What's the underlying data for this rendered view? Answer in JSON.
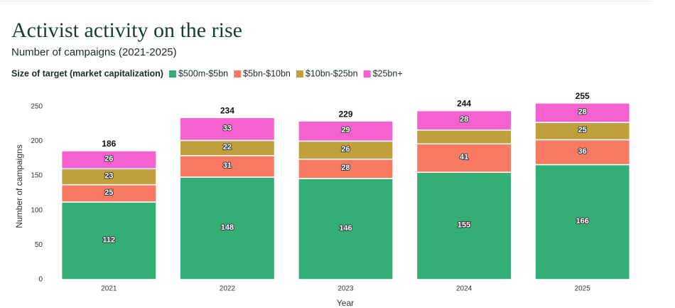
{
  "chart_data": {
    "type": "stacked_bar",
    "title": "Activist activity on the rise",
    "subtitle": "Number of campaigns (2021-2025)",
    "legend_title": "Size of target (market capitalization)",
    "x_label": "Year",
    "y_label": "Number of campaigns",
    "categories": [
      "2021",
      "2022",
      "2023",
      "2024",
      "2025"
    ],
    "series": [
      {
        "name": "$500m-$5bn",
        "color": "#34ae74",
        "values": [
          112,
          148,
          146,
          155,
          166
        ]
      },
      {
        "name": "$5bn-$10bn",
        "color": "#f87a62",
        "values": [
          25,
          31,
          28,
          41,
          36
        ]
      },
      {
        "name": "$10bn-$25bn",
        "color": "#c0a03c",
        "values": [
          23,
          22,
          26,
          20,
          25
        ],
        "value_labels": [
          "23",
          "22",
          "26",
          null,
          "25"
        ]
      },
      {
        "name": "$25bn+",
        "color": "#f562d0",
        "values": [
          26,
          33,
          29,
          28,
          28
        ]
      }
    ],
    "totals": [
      186,
      234,
      229,
      244,
      255
    ],
    "ylim": [
      0,
      260
    ],
    "yticks": [
      0,
      50,
      100,
      150,
      200,
      250
    ],
    "grid": false
  }
}
